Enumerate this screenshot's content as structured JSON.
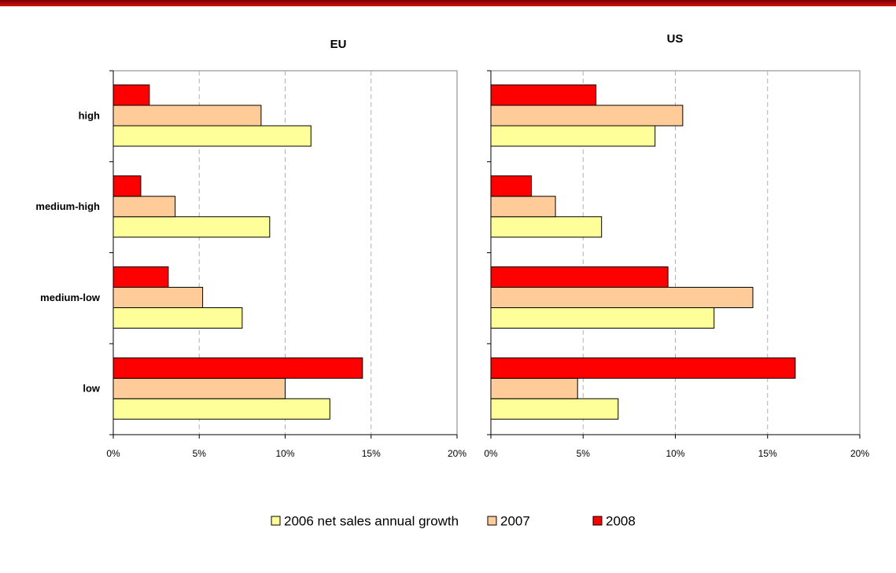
{
  "chart_data": [
    {
      "type": "bar",
      "orientation": "horizontal",
      "title": "EU",
      "categories": [
        "high",
        "medium-high",
        "medium-low",
        "low"
      ],
      "series": [
        {
          "name": "2006 net sales annual growth",
          "color": "#ffff99",
          "values": [
            11.5,
            9.1,
            7.5,
            12.6
          ]
        },
        {
          "name": "2007",
          "color": "#ffcc99",
          "values": [
            8.6,
            3.6,
            5.2,
            10.0
          ]
        },
        {
          "name": "2008",
          "color": "#ff0000",
          "values": [
            2.1,
            1.6,
            3.2,
            14.5
          ]
        }
      ],
      "xlim": [
        0,
        20
      ],
      "xticks": [
        {
          "value": 0,
          "label": "0%"
        },
        {
          "value": 5,
          "label": "5%"
        },
        {
          "value": 10,
          "label": "10%"
        },
        {
          "value": 15,
          "label": "15%"
        },
        {
          "value": 20,
          "label": "20%"
        }
      ],
      "grid": true
    },
    {
      "type": "bar",
      "orientation": "horizontal",
      "title": "US",
      "series": [
        {
          "color": "#ffff99",
          "values": [
            8.9,
            6.0,
            12.1,
            6.9
          ]
        },
        {
          "color": "#ffcc99",
          "values": [
            10.4,
            3.5,
            14.2,
            4.7
          ]
        },
        {
          "color": "#ff0000",
          "values": [
            5.7,
            2.2,
            9.6,
            16.5
          ]
        }
      ],
      "xlim": [
        0,
        20
      ],
      "xticks": [
        {
          "value": 0,
          "label": "0%"
        },
        {
          "value": 5,
          "label": "5%"
        },
        {
          "value": 10,
          "label": "10%"
        },
        {
          "value": 15,
          "label": "15%"
        },
        {
          "value": 20,
          "label": "20%"
        }
      ],
      "grid": true
    }
  ]
}
